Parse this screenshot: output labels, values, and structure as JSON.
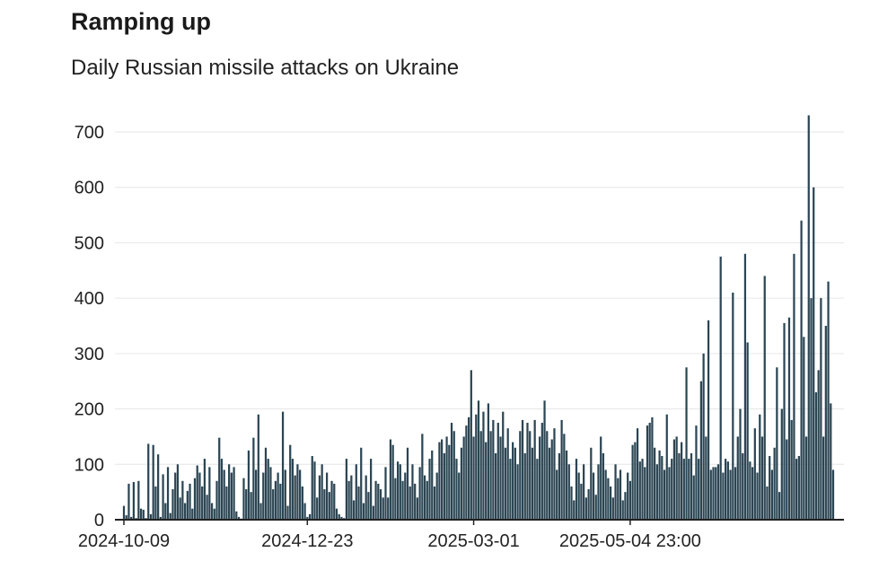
{
  "title": "Ramping up",
  "subtitle": "Daily Russian missile attacks on Ukraine",
  "colors": {
    "bar": "#2b4553",
    "grid": "#e6e6e6",
    "axis": "#222222",
    "text": "#222222"
  },
  "chart_data": {
    "type": "bar",
    "title": "Ramping up",
    "subtitle": "Daily Russian missile attacks on Ukraine",
    "xlabel": "",
    "ylabel": "",
    "ylim": [
      0,
      700
    ],
    "yticks": [
      0,
      100,
      200,
      300,
      400,
      500,
      600,
      700
    ],
    "xtick_labels": [
      {
        "index": 0,
        "label": "2024-10-09"
      },
      {
        "index": 75,
        "label": "2024-12-23"
      },
      {
        "index": 143,
        "label": "2025-03-01"
      },
      {
        "index": 207,
        "label": "2025-05-04 23:00"
      }
    ],
    "grid": true,
    "values": [
      25,
      8,
      65,
      5,
      68,
      3,
      70,
      20,
      18,
      3,
      137,
      10,
      135,
      60,
      118,
      5,
      82,
      30,
      95,
      12,
      55,
      85,
      100,
      40,
      70,
      30,
      52,
      65,
      20,
      75,
      98,
      85,
      60,
      110,
      45,
      95,
      30,
      20,
      70,
      148,
      110,
      90,
      60,
      100,
      85,
      95,
      15,
      5,
      2,
      75,
      55,
      125,
      50,
      148,
      90,
      190,
      30,
      85,
      130,
      110,
      95,
      55,
      70,
      85,
      65,
      195,
      90,
      25,
      135,
      110,
      80,
      100,
      90,
      60,
      30,
      5,
      10,
      115,
      105,
      40,
      80,
      100,
      55,
      85,
      50,
      70,
      65,
      20,
      10,
      5,
      3,
      110,
      70,
      80,
      35,
      100,
      60,
      130,
      30,
      80,
      50,
      110,
      25,
      70,
      65,
      55,
      40,
      95,
      40,
      145,
      135,
      75,
      105,
      100,
      70,
      85,
      130,
      60,
      100,
      65,
      40,
      95,
      155,
      80,
      70,
      110,
      125,
      60,
      85,
      140,
      145,
      120,
      150,
      135,
      175,
      160,
      110,
      85,
      130,
      150,
      170,
      185,
      270,
      150,
      190,
      215,
      160,
      195,
      140,
      210,
      160,
      180,
      120,
      175,
      150,
      195,
      130,
      165,
      110,
      140,
      130,
      100,
      160,
      180,
      120,
      175,
      160,
      130,
      180,
      110,
      150,
      175,
      215,
      160,
      130,
      145,
      165,
      90,
      120,
      180,
      155,
      125,
      100,
      60,
      35,
      110,
      85,
      65,
      100,
      40,
      55,
      130,
      85,
      45,
      100,
      150,
      120,
      90,
      75,
      60,
      40,
      100,
      75,
      90,
      35,
      50,
      85,
      70,
      135,
      140,
      165,
      105,
      110,
      95,
      170,
      175,
      185,
      130,
      100,
      125,
      115,
      90,
      190,
      95,
      110,
      145,
      150,
      120,
      140,
      110,
      275,
      110,
      120,
      80,
      170,
      110,
      250,
      300,
      150,
      360,
      90,
      95,
      95,
      100,
      475,
      85,
      110,
      105,
      90,
      410,
      95,
      150,
      200,
      120,
      480,
      320,
      105,
      95,
      165,
      85,
      190,
      150,
      440,
      60,
      115,
      90,
      130,
      275,
      50,
      200,
      355,
      145,
      365,
      180,
      480,
      110,
      115,
      540,
      330,
      150,
      730,
      400,
      600,
      230,
      270,
      400,
      150,
      350,
      430,
      210,
      90
    ]
  }
}
